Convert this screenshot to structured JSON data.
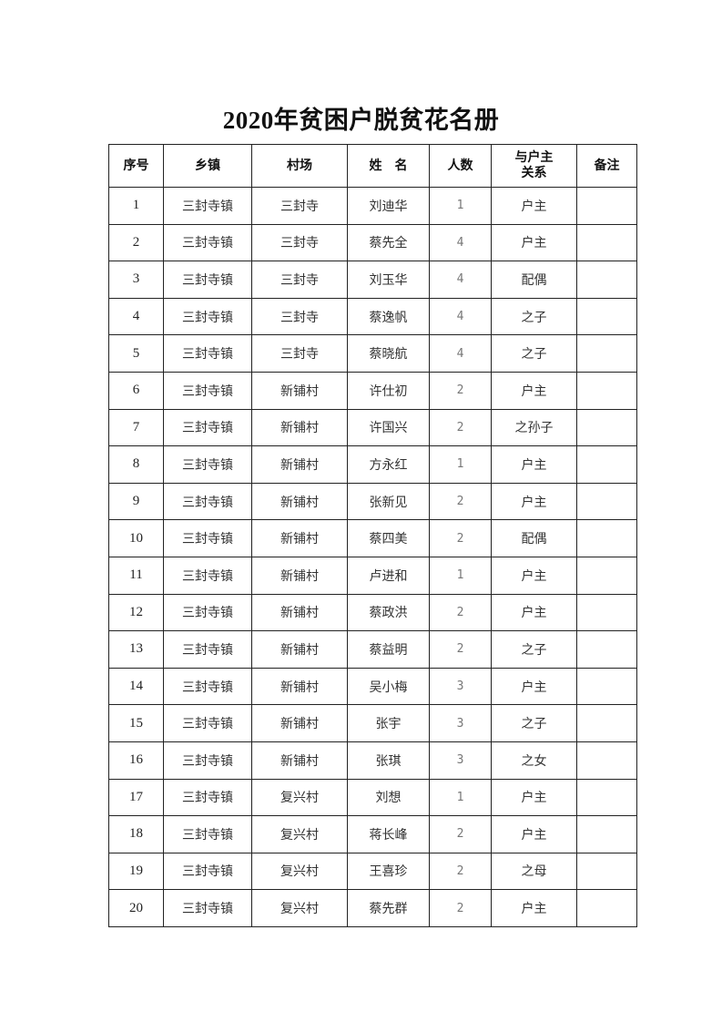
{
  "title": "2020年贫困户脱贫花名册",
  "table": {
    "headers": [
      "序号",
      "乡镇",
      "村场",
      "姓　名",
      "人数",
      "与户主关系",
      "备注"
    ],
    "rows": [
      [
        "1",
        "三封寺镇",
        "三封寺",
        "刘迪华",
        "1",
        "户主",
        ""
      ],
      [
        "2",
        "三封寺镇",
        "三封寺",
        "蔡先全",
        "4",
        "户主",
        ""
      ],
      [
        "3",
        "三封寺镇",
        "三封寺",
        "刘玉华",
        "4",
        "配偶",
        ""
      ],
      [
        "4",
        "三封寺镇",
        "三封寺",
        "蔡逸帆",
        "4",
        "之子",
        ""
      ],
      [
        "5",
        "三封寺镇",
        "三封寺",
        "蔡晓航",
        "4",
        "之子",
        ""
      ],
      [
        "6",
        "三封寺镇",
        "新铺村",
        "许仕初",
        "2",
        "户主",
        ""
      ],
      [
        "7",
        "三封寺镇",
        "新铺村",
        "许国兴",
        "2",
        "之孙子",
        ""
      ],
      [
        "8",
        "三封寺镇",
        "新铺村",
        "方永红",
        "1",
        "户主",
        ""
      ],
      [
        "9",
        "三封寺镇",
        "新铺村",
        "张新见",
        "2",
        "户主",
        ""
      ],
      [
        "10",
        "三封寺镇",
        "新铺村",
        "蔡四美",
        "2",
        "配偶",
        ""
      ],
      [
        "11",
        "三封寺镇",
        "新铺村",
        "卢进和",
        "1",
        "户主",
        ""
      ],
      [
        "12",
        "三封寺镇",
        "新铺村",
        "蔡政洪",
        "2",
        "户主",
        ""
      ],
      [
        "13",
        "三封寺镇",
        "新铺村",
        "蔡益明",
        "2",
        "之子",
        ""
      ],
      [
        "14",
        "三封寺镇",
        "新铺村",
        "吴小梅",
        "3",
        "户主",
        ""
      ],
      [
        "15",
        "三封寺镇",
        "新铺村",
        "张宇",
        "3",
        "之子",
        ""
      ],
      [
        "16",
        "三封寺镇",
        "新铺村",
        "张琪",
        "3",
        "之女",
        ""
      ],
      [
        "17",
        "三封寺镇",
        "复兴村",
        "刘想",
        "1",
        "户主",
        ""
      ],
      [
        "18",
        "三封寺镇",
        "复兴村",
        "蒋长峰",
        "2",
        "户主",
        ""
      ],
      [
        "19",
        "三封寺镇",
        "复兴村",
        "王喜珍",
        "2",
        "之母",
        ""
      ],
      [
        "20",
        "三封寺镇",
        "复兴村",
        "蔡先群",
        "2",
        "户主",
        ""
      ]
    ]
  }
}
